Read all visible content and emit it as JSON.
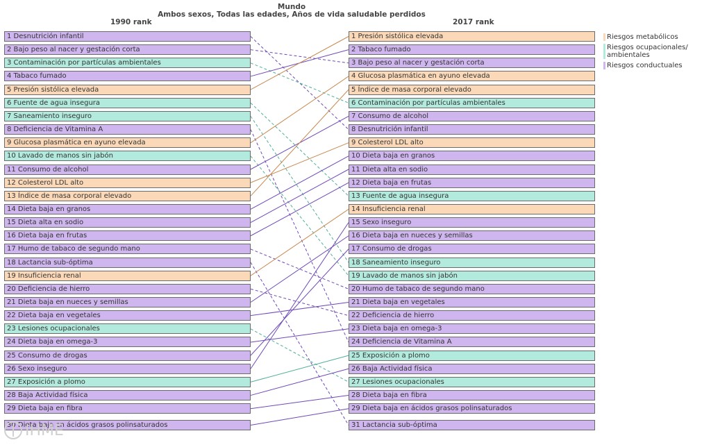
{
  "header": {
    "title": "Mundo",
    "subtitle": "Ambos sexos, Todas las edades, Años de vida saludable perdidos",
    "left_col": "1990 rank",
    "right_col": "2017 rank"
  },
  "logo_text": "IHME",
  "legend": [
    {
      "label": "Riesgos metabólicos",
      "color": "#fbd9b8"
    },
    {
      "label": "Riesgos ocupacionales/ ambientales",
      "color": "#b2ebdd"
    },
    {
      "label": "Riesgos conductuales",
      "color": "#cfb6ee"
    }
  ],
  "chart_data": {
    "type": "table",
    "colors": {
      "met": "#fbd9b8",
      "env": "#b2ebdd",
      "beh": "#cfb6ee"
    },
    "line_colors": {
      "met": "#c8894f",
      "env": "#4fae98",
      "beh": "#6e48b8"
    },
    "left": [
      {
        "label": "1 Desnutrición infantil",
        "cat": "beh"
      },
      {
        "label": "2 Bajo peso al nacer y gestación corta",
        "cat": "beh"
      },
      {
        "label": "3 Contaminación por partículas ambientales",
        "cat": "env"
      },
      {
        "label": "4 Tabaco fumado",
        "cat": "beh"
      },
      {
        "label": "5 Presión sistólica elevada",
        "cat": "met"
      },
      {
        "label": "6 Fuente de agua insegura",
        "cat": "env"
      },
      {
        "label": "7 Saneamiento inseguro",
        "cat": "env"
      },
      {
        "label": "8 Deficiencia de Vitamina A",
        "cat": "beh"
      },
      {
        "label": "9 Glucosa plasmática en ayuno elevada",
        "cat": "met"
      },
      {
        "label": "10 Lavado de manos sin jabón",
        "cat": "env"
      },
      {
        "label": "11 Consumo de alcohol",
        "cat": "beh"
      },
      {
        "label": "12 Colesterol LDL alto",
        "cat": "met"
      },
      {
        "label": "13 Índice de masa corporal elevado",
        "cat": "met"
      },
      {
        "label": "14 Dieta baja en granos",
        "cat": "beh"
      },
      {
        "label": "15 Dieta alta en sodio",
        "cat": "beh"
      },
      {
        "label": "16 Dieta baja en frutas",
        "cat": "beh"
      },
      {
        "label": "17 Humo de tabaco de segundo mano",
        "cat": "beh"
      },
      {
        "label": "18 Lactancia sub-óptima",
        "cat": "beh"
      },
      {
        "label": "19 Insuficiencia renal",
        "cat": "met"
      },
      {
        "label": "20 Deficiencia de hierro",
        "cat": "beh"
      },
      {
        "label": "21 Dieta baja en nueces y semillas",
        "cat": "beh"
      },
      {
        "label": "22 Dieta baja en vegetales",
        "cat": "beh"
      },
      {
        "label": "23 Lesiones ocupacionales",
        "cat": "env"
      },
      {
        "label": "24 Dieta baja en omega-3",
        "cat": "beh"
      },
      {
        "label": "25 Consumo de drogas",
        "cat": "beh"
      },
      {
        "label": "26 Sexo inseguro",
        "cat": "beh"
      },
      {
        "label": "27 Exposición a plomo",
        "cat": "env"
      },
      {
        "label": "28 Baja Actividad física",
        "cat": "beh"
      },
      {
        "label": "29 Dieta baja en fibra",
        "cat": "beh"
      },
      {
        "label": "30 Dieta baja en ácidos grasos polinsaturados",
        "cat": "beh"
      }
    ],
    "right": [
      {
        "label": "1 Presión sistólica elevada",
        "cat": "met"
      },
      {
        "label": "2 Tabaco fumado",
        "cat": "beh"
      },
      {
        "label": "3 Bajo peso al nacer y gestación corta",
        "cat": "beh"
      },
      {
        "label": "4 Glucosa plasmática en ayuno elevada",
        "cat": "met"
      },
      {
        "label": "5 Índice de masa corporal elevado",
        "cat": "met"
      },
      {
        "label": "6 Contaminación por partículas ambientales",
        "cat": "env"
      },
      {
        "label": "7 Consumo de alcohol",
        "cat": "beh"
      },
      {
        "label": "8 Desnutrición infantil",
        "cat": "beh"
      },
      {
        "label": "9 Colesterol LDL alto",
        "cat": "met"
      },
      {
        "label": "10 Dieta baja en granos",
        "cat": "beh"
      },
      {
        "label": "11 Dieta alta en sodio",
        "cat": "beh"
      },
      {
        "label": "12 Dieta baja en frutas",
        "cat": "beh"
      },
      {
        "label": "13 Fuente de agua insegura",
        "cat": "env"
      },
      {
        "label": "14 Insuficiencia renal",
        "cat": "met"
      },
      {
        "label": "15 Sexo inseguro",
        "cat": "beh"
      },
      {
        "label": "16 Dieta baja en nueces y semillas",
        "cat": "beh"
      },
      {
        "label": "17 Consumo de drogas",
        "cat": "beh"
      },
      {
        "label": "18 Saneamiento inseguro",
        "cat": "env"
      },
      {
        "label": "19 Lavado de manos sin jabón",
        "cat": "env"
      },
      {
        "label": "20 Humo de tabaco de segundo mano",
        "cat": "beh"
      },
      {
        "label": "21 Dieta baja en vegetales",
        "cat": "beh"
      },
      {
        "label": "22 Deficiencia de hierro",
        "cat": "beh"
      },
      {
        "label": "23 Dieta baja en omega-3",
        "cat": "beh"
      },
      {
        "label": "24 Deficiencia de Vitamina A",
        "cat": "beh"
      },
      {
        "label": "25 Exposición a plomo",
        "cat": "env"
      },
      {
        "label": "26 Baja Actividad física",
        "cat": "beh"
      },
      {
        "label": "27 Lesiones ocupacionales",
        "cat": "env"
      },
      {
        "label": "28 Dieta baja en fibra",
        "cat": "beh"
      },
      {
        "label": "29 Dieta baja en ácidos grasos polinsaturados",
        "cat": "beh"
      },
      {
        "label": "31 Lactancia sub-óptima",
        "cat": "beh"
      }
    ],
    "links": [
      {
        "from": 1,
        "to": 8,
        "cat": "beh",
        "dashed": true
      },
      {
        "from": 2,
        "to": 3,
        "cat": "beh",
        "dashed": true
      },
      {
        "from": 3,
        "to": 6,
        "cat": "env",
        "dashed": true
      },
      {
        "from": 4,
        "to": 2,
        "cat": "beh",
        "dashed": false
      },
      {
        "from": 5,
        "to": 1,
        "cat": "met",
        "dashed": false
      },
      {
        "from": 6,
        "to": 13,
        "cat": "env",
        "dashed": true
      },
      {
        "from": 7,
        "to": 18,
        "cat": "env",
        "dashed": true
      },
      {
        "from": 8,
        "to": 24,
        "cat": "beh",
        "dashed": true
      },
      {
        "from": 9,
        "to": 4,
        "cat": "met",
        "dashed": false
      },
      {
        "from": 10,
        "to": 19,
        "cat": "env",
        "dashed": true
      },
      {
        "from": 11,
        "to": 7,
        "cat": "beh",
        "dashed": false
      },
      {
        "from": 12,
        "to": 9,
        "cat": "met",
        "dashed": false
      },
      {
        "from": 13,
        "to": 5,
        "cat": "met",
        "dashed": false
      },
      {
        "from": 14,
        "to": 10,
        "cat": "beh",
        "dashed": false
      },
      {
        "from": 15,
        "to": 11,
        "cat": "beh",
        "dashed": false
      },
      {
        "from": 16,
        "to": 12,
        "cat": "beh",
        "dashed": false
      },
      {
        "from": 17,
        "to": 20,
        "cat": "beh",
        "dashed": true
      },
      {
        "from": 18,
        "to": 30,
        "cat": "beh",
        "dashed": true
      },
      {
        "from": 19,
        "to": 14,
        "cat": "met",
        "dashed": false
      },
      {
        "from": 20,
        "to": 22,
        "cat": "beh",
        "dashed": true
      },
      {
        "from": 21,
        "to": 16,
        "cat": "beh",
        "dashed": false
      },
      {
        "from": 22,
        "to": 21,
        "cat": "beh",
        "dashed": false
      },
      {
        "from": 23,
        "to": 27,
        "cat": "env",
        "dashed": true
      },
      {
        "from": 24,
        "to": 23,
        "cat": "beh",
        "dashed": false
      },
      {
        "from": 25,
        "to": 17,
        "cat": "beh",
        "dashed": false
      },
      {
        "from": 26,
        "to": 15,
        "cat": "beh",
        "dashed": false
      },
      {
        "from": 27,
        "to": 25,
        "cat": "env",
        "dashed": false
      },
      {
        "from": 28,
        "to": 26,
        "cat": "beh",
        "dashed": false
      },
      {
        "from": 29,
        "to": 28,
        "cat": "beh",
        "dashed": false
      },
      {
        "from": 30,
        "to": 29,
        "cat": "beh",
        "dashed": false
      }
    ]
  }
}
